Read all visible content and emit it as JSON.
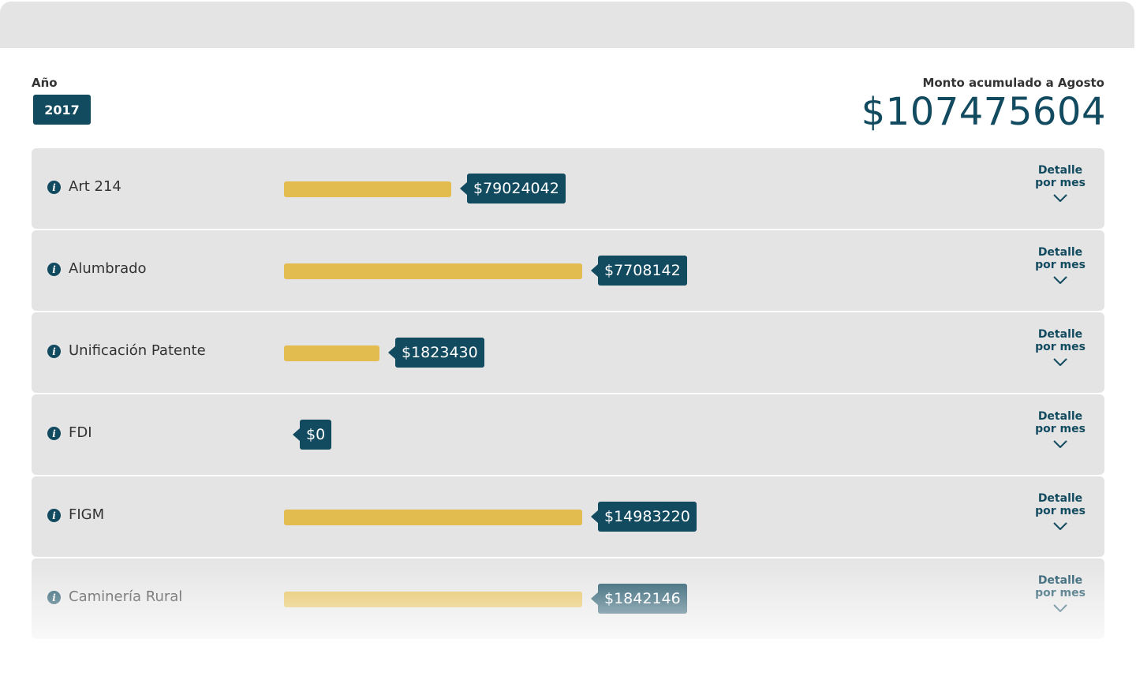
{
  "header": {
    "year_label": "Año",
    "year_value": "2017",
    "total_label": "Monto acumulado a Agosto",
    "total_value": "$107475604"
  },
  "detail_label_line1": "Detalle",
  "detail_label_line2": "por mes",
  "colors": {
    "accent": "#124a5f",
    "bar": "#e2bc4e",
    "row_bg": "#e4e4e4"
  },
  "rows": [
    {
      "label": "Art 214",
      "value": "$79024042",
      "bar_fraction": 0.56
    },
    {
      "label": "Alumbrado",
      "value": "$7708142",
      "bar_fraction": 1.0
    },
    {
      "label": "Unificación Patente",
      "value": "$1823430",
      "bar_fraction": 0.32
    },
    {
      "label": "FDI",
      "value": "$0",
      "bar_fraction": 0.0
    },
    {
      "label": "FIGM",
      "value": "$14983220",
      "bar_fraction": 1.0
    },
    {
      "label": "Caminería Rural",
      "value": "$1842146",
      "bar_fraction": 1.0
    }
  ]
}
